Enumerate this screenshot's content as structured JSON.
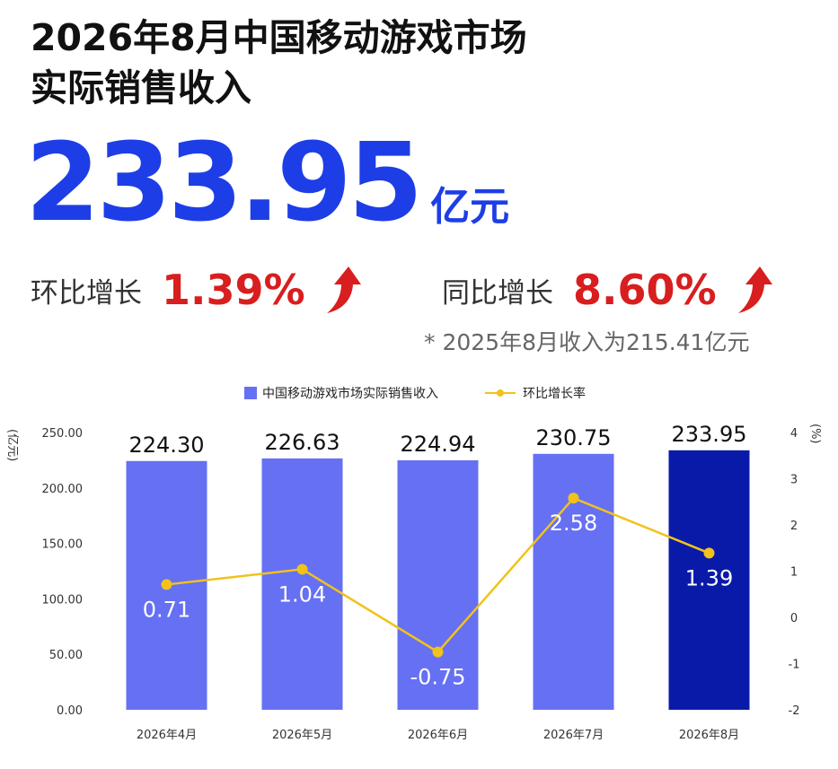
{
  "header": {
    "title_line1": "2026年8月中国移动游戏市场",
    "title_line2": "实际销售收入",
    "hero_value": "233.95",
    "hero_unit": "亿元"
  },
  "growth": {
    "mom_label": "环比增长",
    "mom_value": "1.39%",
    "yoy_label": "同比增长",
    "yoy_value": "8.60%"
  },
  "footnote": "* 2025年8月收入为215.41亿元",
  "colors": {
    "hero": "#1d3ee6",
    "growth": "#d81e1e",
    "bar": "#6670f2",
    "bar_highlight": "#0a1aa8",
    "line": "#f2c21b"
  },
  "chart_data": {
    "type": "bar",
    "categories": [
      "2026年4月",
      "2026年5月",
      "2026年6月",
      "2026年7月",
      "2026年8月"
    ],
    "series": [
      {
        "name": "中国移动游戏市场实际销售收入",
        "type": "bar",
        "axis": "left",
        "values": [
          224.3,
          226.63,
          224.94,
          230.75,
          233.95
        ],
        "labels": [
          "224.30",
          "226.63",
          "224.94",
          "230.75",
          "233.95"
        ]
      },
      {
        "name": "环比增长率",
        "type": "line",
        "axis": "right",
        "values": [
          0.71,
          1.04,
          -0.75,
          2.58,
          1.39
        ],
        "labels": [
          "0.71",
          "1.04",
          "-0.75",
          "2.58",
          "1.39"
        ]
      }
    ],
    "y_left": {
      "label": "(亿元)",
      "range": [
        0,
        250
      ],
      "ticks": [
        "0.00",
        "50.00",
        "100.00",
        "150.00",
        "200.00",
        "250.00"
      ]
    },
    "y_right": {
      "label": "(%)",
      "range": [
        -2,
        4
      ],
      "ticks": [
        "-2",
        "-1",
        "0",
        "1",
        "2",
        "3",
        "4"
      ]
    },
    "highlight_index": 4,
    "grid": false,
    "legend_position": "top"
  }
}
